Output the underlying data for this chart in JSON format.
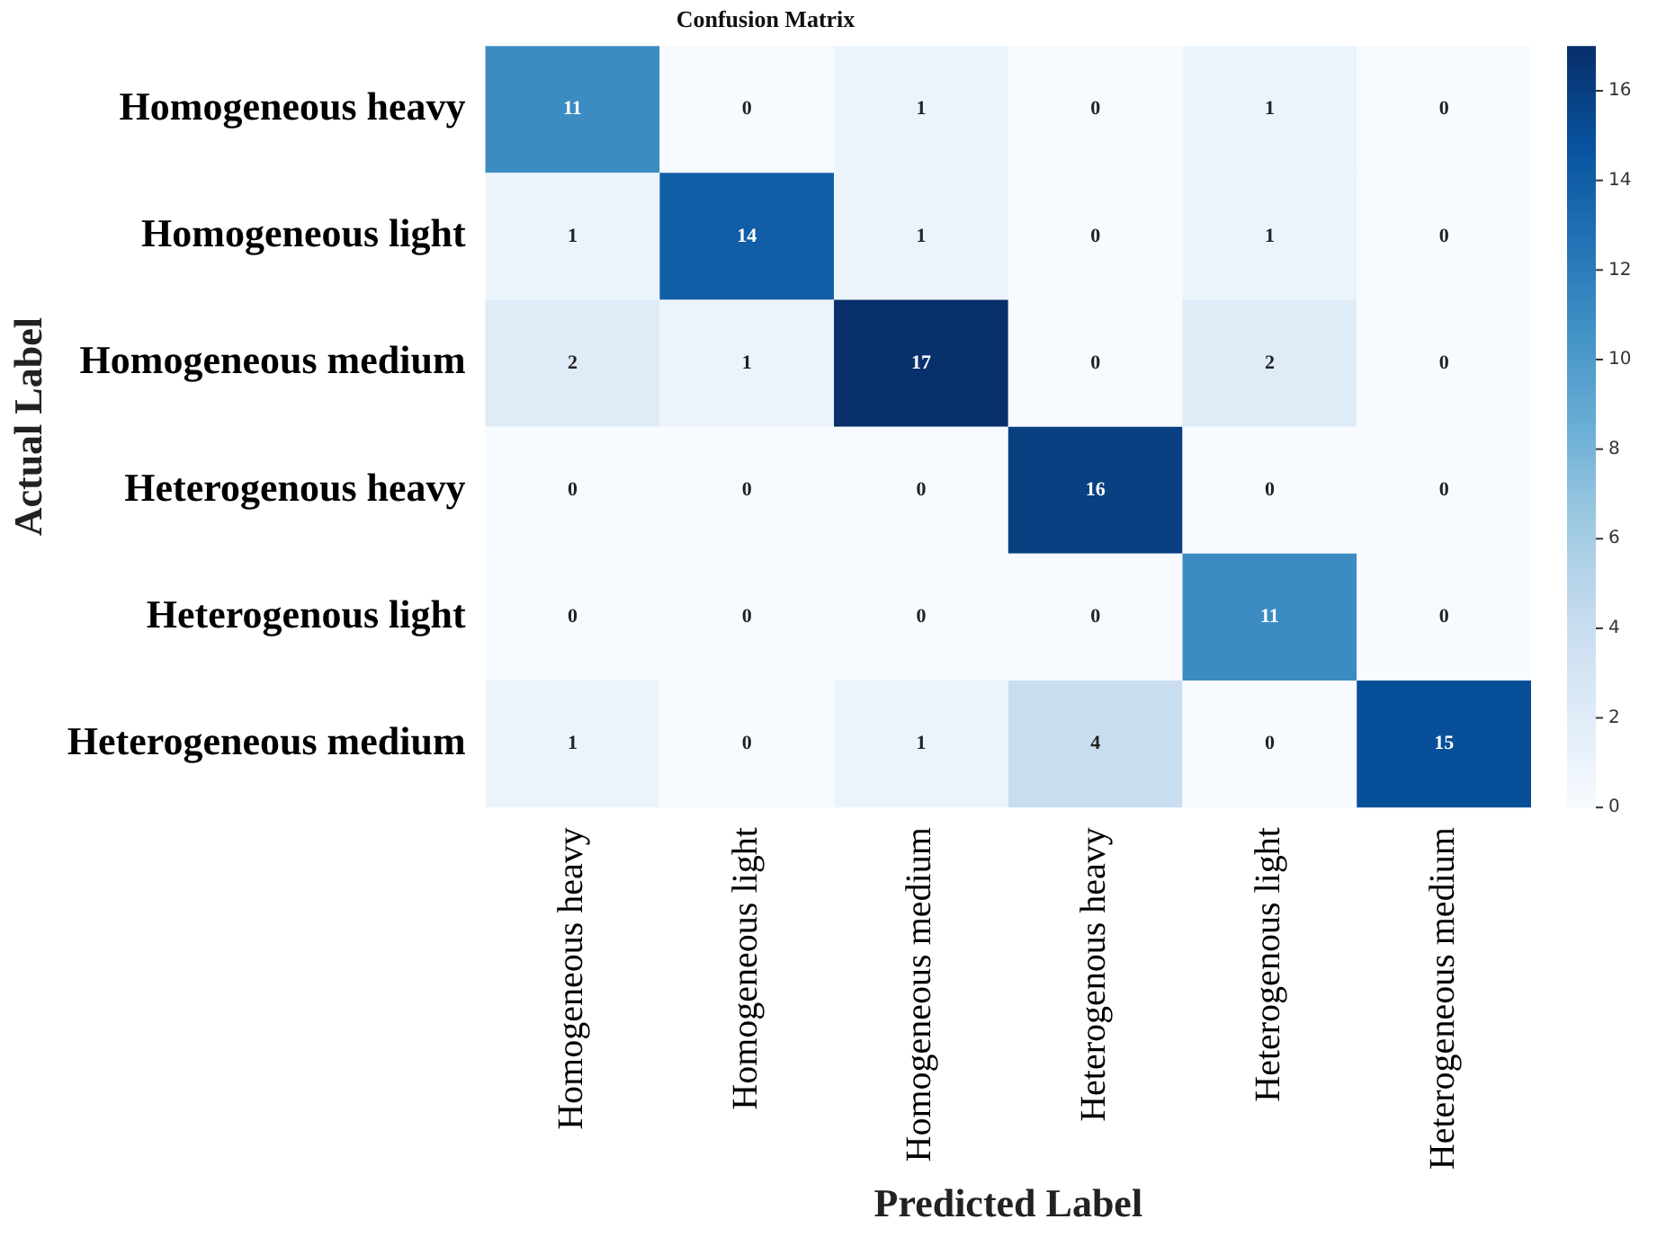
{
  "chart_data": {
    "type": "heatmap",
    "title": "Confusion Matrix",
    "xlabel": "Predicted Label",
    "ylabel": "Actual Label",
    "categories": [
      "Homogeneous heavy",
      "Homogeneous light",
      "Homogeneous medium",
      "Heterogenous heavy",
      "Heterogenous light",
      "Heterogeneous medium"
    ],
    "y_categories": [
      "Homogeneous heavy",
      "Homogeneous light",
      "Homogeneous medium",
      "Heterogenous heavy",
      "Heterogenous light",
      "Heterogeneous medium"
    ],
    "cells": [
      [
        11,
        0,
        1,
        0,
        1,
        0
      ],
      [
        1,
        14,
        1,
        0,
        1,
        0
      ],
      [
        2,
        1,
        17,
        0,
        2,
        0
      ],
      [
        0,
        0,
        0,
        16,
        0,
        0
      ],
      [
        0,
        0,
        0,
        0,
        11,
        0
      ],
      [
        1,
        0,
        1,
        4,
        0,
        15
      ]
    ],
    "clim": [
      0,
      17
    ],
    "cticks": [
      0,
      2,
      4,
      6,
      8,
      10,
      12,
      14,
      16
    ],
    "data_labels": true
  }
}
